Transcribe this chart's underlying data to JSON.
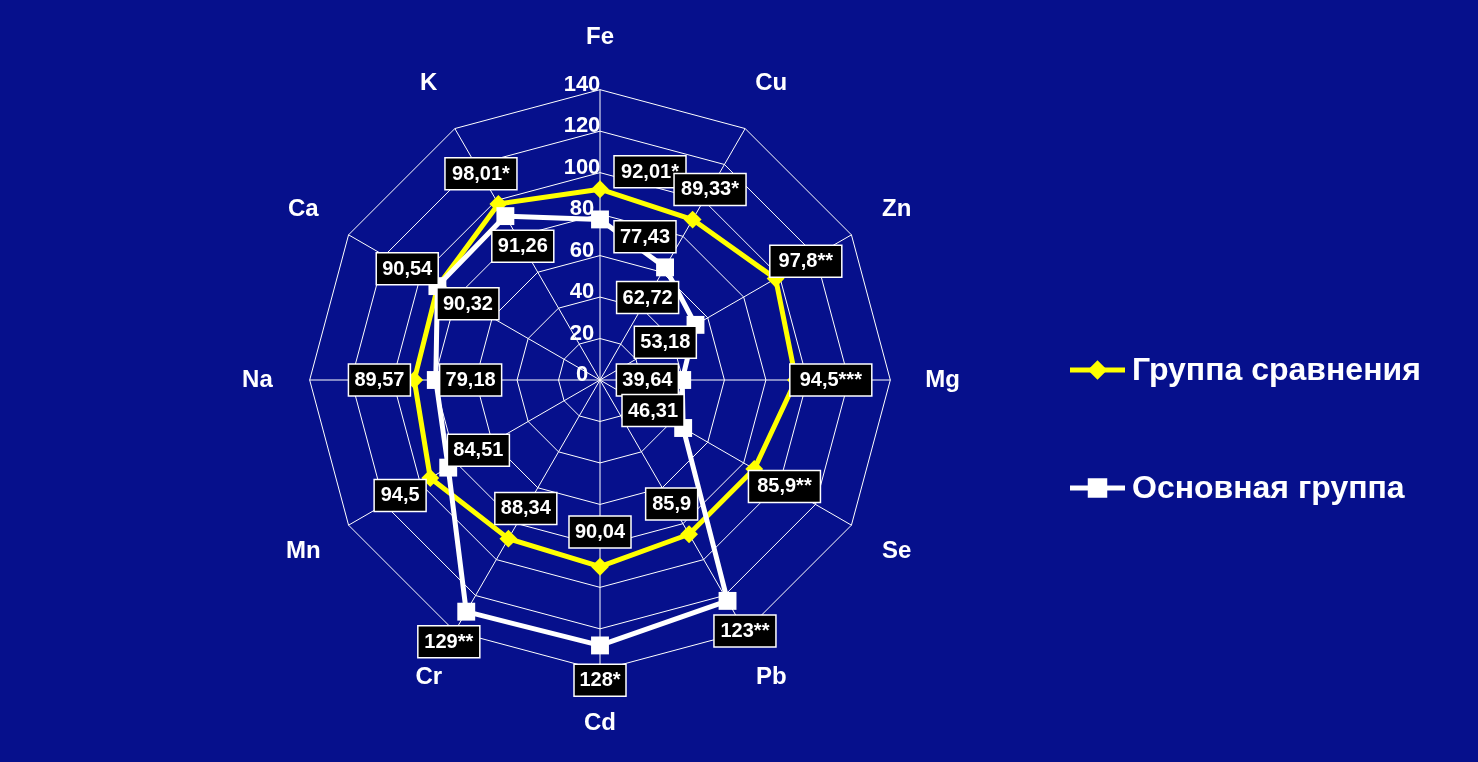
{
  "chart_data": {
    "type": "radar",
    "categories": [
      "Fe",
      "Cu",
      "Zn",
      "Mg",
      "Se",
      "Pb",
      "Cd",
      "Cr",
      "Mn",
      "Na",
      "Ca",
      "K"
    ],
    "series": [
      {
        "name": "Группа сравнения",
        "color": "#ffff00",
        "marker": "diamond",
        "values": [
          92.01,
          89.33,
          97.8,
          94.5,
          85.9,
          85.9,
          90.04,
          88.34,
          94.5,
          89.57,
          90.32,
          98.01
        ],
        "value_labels": [
          "92,01*",
          "89,33*",
          "97,8**",
          "94,5***",
          "85,9**",
          "85,9",
          "90,04",
          "88,34",
          "94,5",
          "89,57",
          "90,32",
          "98,01*"
        ]
      },
      {
        "name": "Основная группа",
        "color": "#ffffff",
        "marker": "square",
        "values": [
          77.43,
          62.72,
          53.18,
          39.64,
          46.31,
          123,
          128,
          129,
          84.51,
          79.18,
          90.54,
          91.26
        ],
        "value_labels": [
          "77,43",
          "62,72",
          "53,18",
          "39,64",
          "46,31",
          "123**",
          "128*",
          "129**",
          "84,51",
          "79,18",
          "90,54",
          "91,26"
        ]
      }
    ],
    "ylim": [
      0,
      140
    ],
    "yticks": [
      0,
      20,
      40,
      60,
      80,
      100,
      120,
      140
    ],
    "grid": true,
    "legend": "right"
  }
}
